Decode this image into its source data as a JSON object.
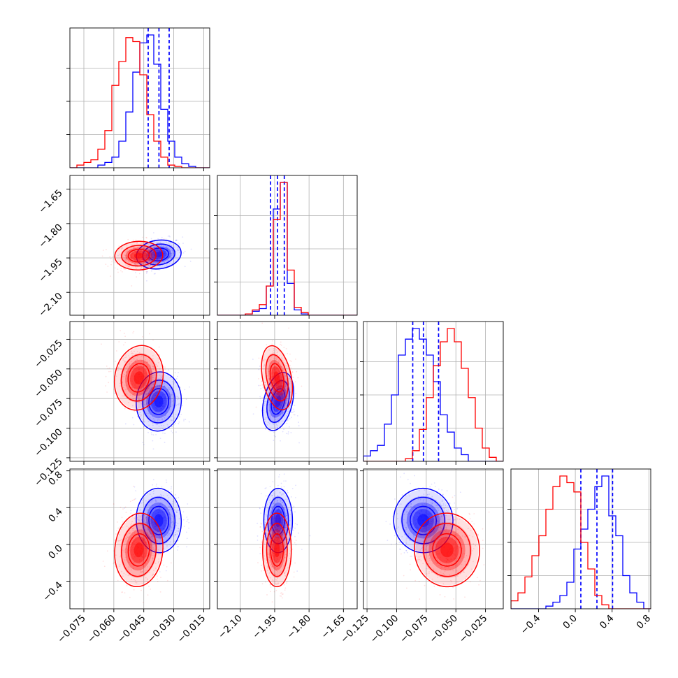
{
  "colors": {
    "blue": "#0000ff",
    "red": "#ff0000"
  },
  "chart_data": {
    "type": "corner",
    "title": "",
    "grid": true,
    "legend": "none",
    "parameters": [
      {
        "label": "",
        "range": [
          -0.082,
          -0.012
        ],
        "ticks": [
          -0.075,
          -0.06,
          -0.045,
          -0.03,
          -0.015
        ],
        "tick_labels": [
          "−0.075",
          "−0.060",
          "−0.045",
          "−0.030",
          "−0.015"
        ]
      },
      {
        "label": "",
        "range": [
          -2.2,
          -1.59
        ],
        "ticks": [
          -2.1,
          -1.95,
          -1.8,
          -1.65
        ],
        "tick_labels": [
          "−2.10",
          "−1.95",
          "−1.80",
          "−1.65"
        ]
      },
      {
        "label": "",
        "range": [
          -0.128,
          -0.01
        ],
        "ticks": [
          -0.125,
          -0.1,
          -0.075,
          -0.05,
          -0.025
        ],
        "tick_labels": [
          "−0.125",
          "−0.100",
          "−0.075",
          "−0.050",
          "−0.025"
        ]
      },
      {
        "label": "",
        "range": [
          -0.7,
          0.82
        ],
        "ticks": [
          -0.4,
          0.0,
          0.4,
          0.8
        ],
        "tick_labels": [
          "−0.4",
          "0.0",
          "0.4",
          "0.8"
        ]
      }
    ],
    "series": [
      {
        "color": "blue",
        "quantiles": [
          [
            -0.0428,
            -0.0374,
            -0.0323
          ],
          [
            -1.968,
            -1.938,
            -1.908
          ],
          [
            -0.0864,
            -0.0774,
            -0.0646
          ],
          [
            0.06,
            0.235,
            0.405
          ]
        ],
        "histograms": [
          [
            0.0,
            0.0,
            0.0,
            0.0,
            0.02,
            0.04,
            0.08,
            0.2,
            0.42,
            0.72,
            0.94,
            1.0,
            0.78,
            0.44,
            0.2,
            0.08,
            0.03,
            0.01,
            0.0,
            0.0
          ],
          [
            0.0,
            0.0,
            0.0,
            0.0,
            0.01,
            0.03,
            0.05,
            0.22,
            0.8,
            1.0,
            0.24,
            0.04,
            0.01,
            0.0,
            0.0,
            0.0,
            0.0,
            0.0,
            0.0,
            0.0
          ],
          [
            0.04,
            0.08,
            0.12,
            0.28,
            0.5,
            0.8,
            0.92,
            1.0,
            0.92,
            0.8,
            0.6,
            0.35,
            0.22,
            0.1,
            0.05,
            0.0,
            0.0,
            0.0,
            0.0,
            0.0
          ],
          [
            0.0,
            0.0,
            0.0,
            0.0,
            0.0,
            0.02,
            0.05,
            0.1,
            0.2,
            0.45,
            0.6,
            0.75,
            0.92,
            1.0,
            0.7,
            0.55,
            0.25,
            0.12,
            0.05,
            0.0
          ]
        ],
        "pair_stats": [
          {
            "cols": [
              0,
              1
            ],
            "rho": 0.35,
            "sx": 0.0045,
            "sy": 0.025
          },
          {
            "cols": [
              0,
              2
            ],
            "rho": -0.1,
            "sx": 0.0045,
            "sy": 0.01
          },
          {
            "cols": [
              1,
              2
            ],
            "rho": -0.2,
            "sx": 0.025,
            "sy": 0.01
          },
          {
            "cols": [
              0,
              3
            ],
            "rho": 0.05,
            "sx": 0.0045,
            "sy": 0.14
          },
          {
            "cols": [
              1,
              3
            ],
            "rho": 0.0,
            "sx": 0.025,
            "sy": 0.14
          },
          {
            "cols": [
              2,
              3
            ],
            "rho": 0.15,
            "sx": 0.01,
            "sy": 0.14
          }
        ]
      },
      {
        "color": "red",
        "quantiles": [],
        "histograms": [
          [
            0.0,
            0.02,
            0.04,
            0.06,
            0.14,
            0.28,
            0.62,
            0.8,
            0.98,
            0.95,
            0.7,
            0.4,
            0.2,
            0.08,
            0.02,
            0.01,
            0.0,
            0.0,
            0.0,
            0.0
          ],
          [
            0.0,
            0.0,
            0.0,
            0.0,
            0.01,
            0.04,
            0.08,
            0.22,
            0.72,
            1.0,
            0.34,
            0.06,
            0.02,
            0.0,
            0.0,
            0.0,
            0.0,
            0.0,
            0.0,
            0.0
          ],
          [
            0.0,
            0.0,
            0.0,
            0.0,
            0.0,
            0.0,
            0.02,
            0.08,
            0.24,
            0.48,
            0.72,
            0.9,
            1.0,
            0.9,
            0.7,
            0.48,
            0.25,
            0.1,
            0.03,
            0.0
          ],
          [
            0.06,
            0.12,
            0.24,
            0.4,
            0.55,
            0.75,
            0.92,
            1.0,
            0.95,
            0.88,
            0.5,
            0.3,
            0.1,
            0.03,
            0.0,
            0.0,
            0.0,
            0.0,
            0.0,
            0.0
          ]
        ],
        "pair_stats": [
          {
            "cols": [
              0,
              1
            ],
            "rho": 0.1,
            "sx": 0.0048,
            "sy": 0.025
          },
          {
            "cols": [
              0,
              2
            ],
            "rho": -0.25,
            "sx": 0.0048,
            "sy": 0.011
          },
          {
            "cols": [
              1,
              2
            ],
            "rho": 0.15,
            "sx": 0.025,
            "sy": 0.011
          },
          {
            "cols": [
              0,
              3
            ],
            "rho": -0.1,
            "sx": 0.0048,
            "sy": 0.16
          },
          {
            "cols": [
              1,
              3
            ],
            "rho": 0.0,
            "sx": 0.025,
            "sy": 0.16
          },
          {
            "cols": [
              2,
              3
            ],
            "rho": 0.1,
            "sx": 0.011,
            "sy": 0.16
          }
        ]
      }
    ],
    "means": [
      [
        -0.0375,
        -1.935,
        -0.0775,
        0.26
      ],
      [
        -0.0475,
        -1.94,
        -0.0575,
        -0.06
      ]
    ]
  }
}
